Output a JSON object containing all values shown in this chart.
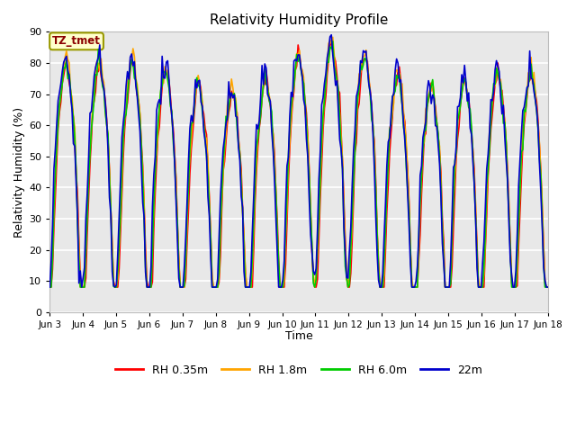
{
  "title": "Relativity Humidity Profile",
  "xlabel": "Time",
  "ylabel": "Relativity Humidity (%)",
  "ylim": [
    0,
    90
  ],
  "yticks": [
    0,
    10,
    20,
    30,
    40,
    50,
    60,
    70,
    80,
    90
  ],
  "x_labels": [
    "Jun 3",
    "Jun 4",
    "Jun 5",
    "Jun 6",
    "Jun 7",
    "Jun 8",
    "Jun 9",
    "Jun 10",
    "Jun 11",
    "Jun 12",
    "Jun 13",
    "Jun 14",
    "Jun 15",
    "Jun 16",
    "Jun 17",
    "Jun 18"
  ],
  "annotation_text": "TZ_tmet",
  "annotation_box_color": "#ffffcc",
  "annotation_text_color": "#8b0000",
  "colors": {
    "RH 0.35m": "#ff0000",
    "RH 1.8m": "#ffa500",
    "RH 6.0m": "#00cc00",
    "22m": "#0000cc"
  },
  "legend_labels": [
    "RH 0.35m",
    "RH 1.8m",
    "RH 6.0m",
    "22m"
  ],
  "plot_bg_color": "#e8e8e8",
  "grid_color": "#ffffff",
  "line_width": 1.2
}
